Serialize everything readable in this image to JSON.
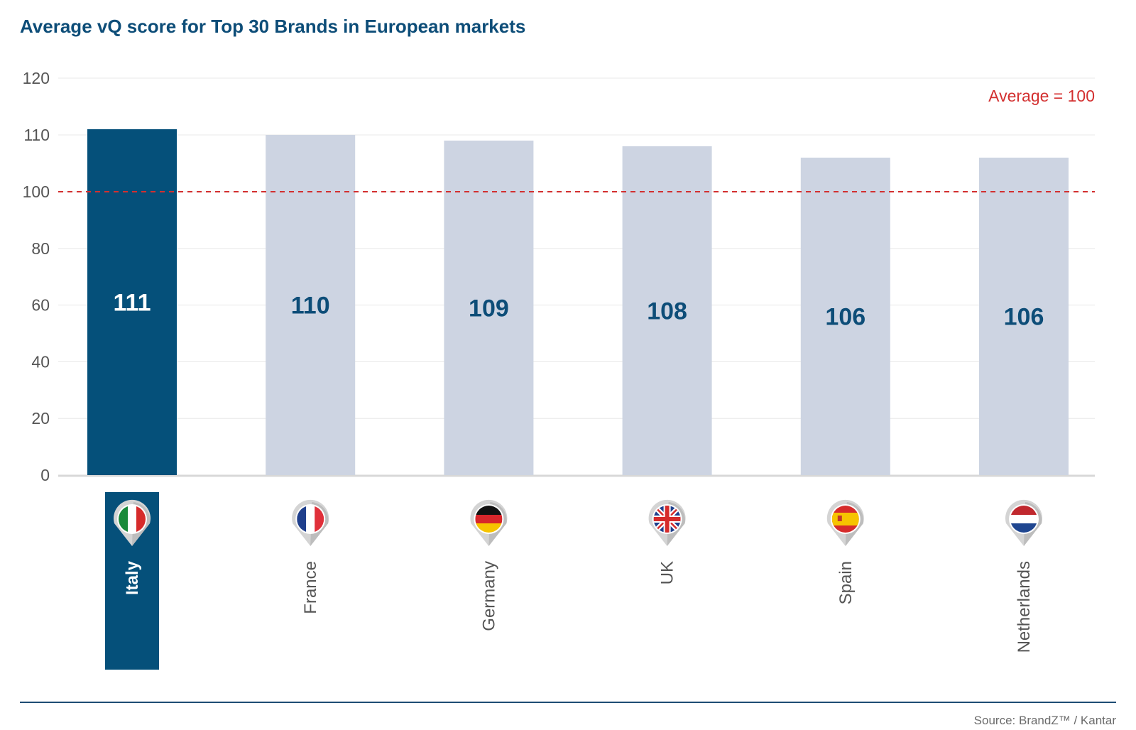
{
  "title": "Average vQ score for Top 30 Brands in European markets",
  "source": "Source: BrandZ™ / Kantar",
  "colors": {
    "highlight": "#05507a",
    "bar": "#cdd4e2",
    "value_dark": "#0d4d78",
    "reference": "#d32f2f",
    "grid": "#e8e8e8"
  },
  "chart_data": {
    "type": "bar",
    "categories": [
      "Italy",
      "France",
      "Germany",
      "UK",
      "Spain",
      "Netherlands"
    ],
    "values": [
      111,
      110,
      109,
      108,
      106,
      106
    ],
    "highlight_index": 0,
    "ylim": [
      0,
      120
    ],
    "ytick_labels": [
      "0",
      "20",
      "40",
      "60",
      "80",
      "100",
      "110",
      "120"
    ],
    "reference_line": {
      "value": 100,
      "label": "Average = 100"
    },
    "category_icons": [
      "italy-flag-pin",
      "france-flag-pin",
      "germany-flag-pin",
      "uk-flag-pin",
      "spain-flag-pin",
      "netherlands-flag-pin"
    ],
    "grid": true,
    "xlabel": "",
    "ylabel": ""
  }
}
